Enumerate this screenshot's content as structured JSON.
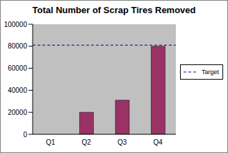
{
  "chart_data": {
    "type": "bar",
    "title": "Total Number of Scrap Tires Removed",
    "categories": [
      "Q1",
      "Q2",
      "Q3",
      "Q4"
    ],
    "values": [
      0,
      20000,
      31000,
      80000
    ],
    "color": "#993366",
    "ylim": [
      0,
      100000
    ],
    "yticks": [
      0,
      20000,
      40000,
      60000,
      80000,
      100000
    ],
    "grid": false,
    "target": {
      "name": "Target",
      "value": 81000,
      "color": "#000080",
      "line_style": "dashed"
    },
    "legend": "right"
  }
}
